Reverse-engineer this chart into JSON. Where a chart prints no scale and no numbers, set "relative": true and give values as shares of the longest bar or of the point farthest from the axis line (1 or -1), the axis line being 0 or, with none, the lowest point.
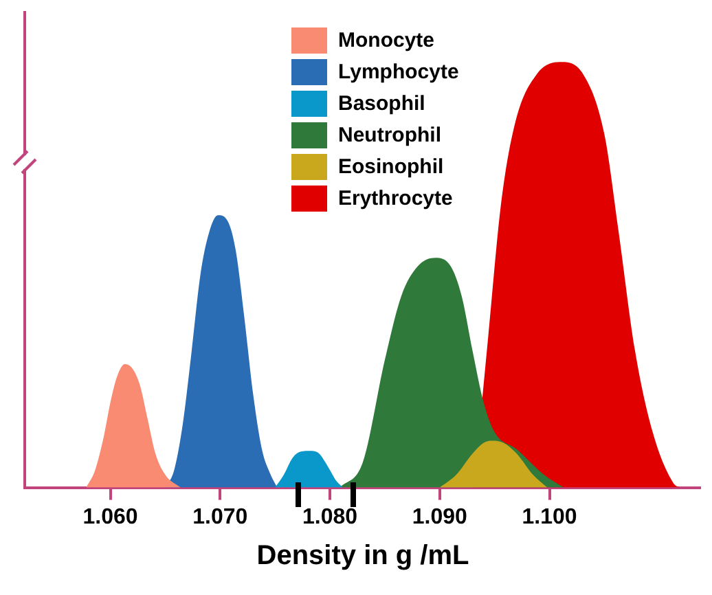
{
  "chart_data": {
    "type": "area",
    "xlabel": "Density in g /mL",
    "relative": true,
    "legend": "top",
    "grid": false,
    "xlim": [
      1.0522,
      1.1138
    ],
    "xticks": [
      {
        "value": 1.06,
        "label": "1.060"
      },
      {
        "value": 1.07,
        "label": "1.070"
      },
      {
        "value": 1.08,
        "label": "1.080"
      },
      {
        "value": 1.09,
        "label": "1.090"
      },
      {
        "value": 1.1,
        "label": "1.100"
      }
    ],
    "series": [
      {
        "name": "Monocyte",
        "color": "#f98b73",
        "x": [
          1.0578,
          1.0586,
          1.0594,
          1.06,
          1.0606,
          1.0613,
          1.062,
          1.0627,
          1.0634,
          1.0641,
          1.065,
          1.0664
        ],
        "values": [
          0,
          0.04,
          0.12,
          0.2,
          0.26,
          0.29,
          0.28,
          0.24,
          0.16,
          0.08,
          0.03,
          0
        ]
      },
      {
        "name": "Lymphocyte",
        "color": "#2a6db5",
        "x": [
          1.065,
          1.0658,
          1.0666,
          1.0674,
          1.0682,
          1.069,
          1.0698,
          1.0706,
          1.0714,
          1.0722,
          1.073,
          1.0738,
          1.0746,
          1.0752
        ],
        "values": [
          0,
          0.04,
          0.15,
          0.32,
          0.5,
          0.6,
          0.64,
          0.63,
          0.56,
          0.4,
          0.22,
          0.09,
          0.03,
          0
        ]
      },
      {
        "name": "Basophil",
        "color": "#0a97c9",
        "x": [
          1.075,
          1.0758,
          1.0766,
          1.0774,
          1.0782,
          1.079,
          1.0798,
          1.0806,
          1.0812
        ],
        "values": [
          0,
          0.03,
          0.07,
          0.085,
          0.086,
          0.08,
          0.05,
          0.015,
          0
        ]
      },
      {
        "name": "Neutrophil",
        "color": "#2f7a3a",
        "x": [
          1.0809,
          1.083,
          1.085,
          1.0865,
          1.088,
          1.0896,
          1.091,
          1.092,
          1.093,
          1.094,
          1.095,
          1.097,
          1.0995,
          1.1013
        ],
        "values": [
          0,
          0.06,
          0.3,
          0.45,
          0.52,
          0.54,
          0.52,
          0.45,
          0.32,
          0.2,
          0.13,
          0.09,
          0.03,
          0
        ]
      },
      {
        "name": "Eosinophil",
        "color": "#c9a81e",
        "x": [
          1.09,
          1.0915,
          1.093,
          1.094,
          1.0948,
          1.0958,
          1.097,
          1.0985,
          1.0998
        ],
        "values": [
          0,
          0.03,
          0.08,
          0.105,
          0.11,
          0.105,
          0.08,
          0.03,
          0
        ]
      },
      {
        "name": "Erythrocyte",
        "color": "#e00000",
        "x": [
          1.0931,
          1.0944,
          1.0956,
          1.0969,
          1.0988,
          1.101,
          1.1031,
          1.105,
          1.1063,
          1.1078,
          1.1094,
          1.1113,
          1.1119
        ],
        "values": [
          0,
          0.35,
          0.67,
          0.86,
          0.97,
          1.0,
          0.97,
          0.83,
          0.6,
          0.32,
          0.13,
          0.01,
          0
        ]
      }
    ]
  }
}
